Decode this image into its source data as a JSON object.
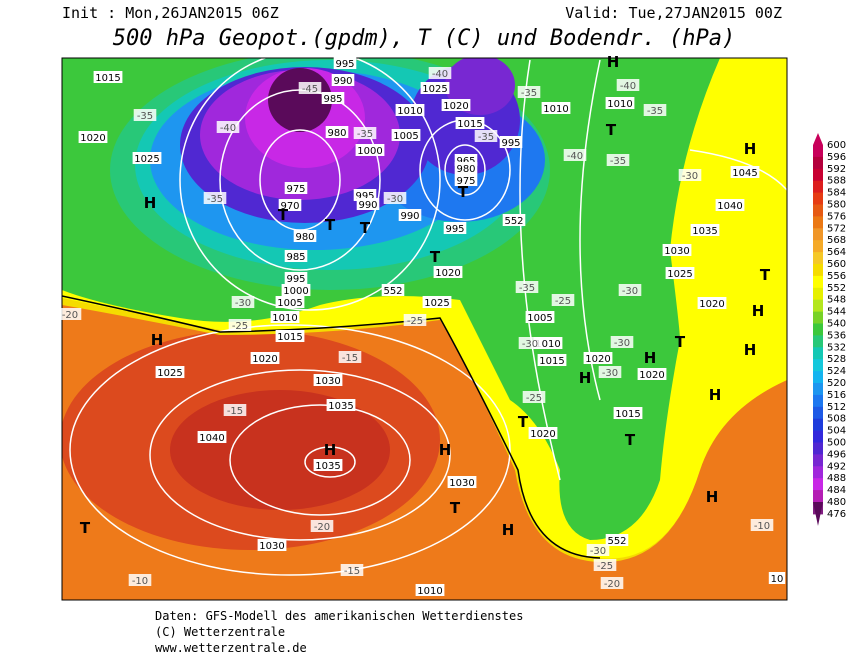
{
  "header": {
    "init": "Init : Mon,26JAN2015 06Z",
    "valid": "Valid: Tue,27JAN2015 00Z",
    "title": "500 hPa Geopot.(gpdm), T (C) und Bodendr. (hPa)"
  },
  "colorbar": {
    "labels": [
      600,
      596,
      592,
      588,
      584,
      580,
      576,
      572,
      568,
      564,
      560,
      556,
      552,
      548,
      544,
      540,
      536,
      532,
      528,
      524,
      520,
      516,
      512,
      508,
      504,
      500,
      496,
      492,
      488,
      484,
      480,
      476
    ],
    "colors": [
      "#c8005a",
      "#b4003c",
      "#c80032",
      "#dc1e1e",
      "#e63c14",
      "#e65a14",
      "#eb7814",
      "#f09628",
      "#f5aa28",
      "#f5c828",
      "#f5dc00",
      "#ffff00",
      "#e6f000",
      "#b4e61e",
      "#78d228",
      "#3cc83c",
      "#28c878",
      "#14c8b4",
      "#14c8dc",
      "#14b4f0",
      "#1e96f0",
      "#1e78f0",
      "#1e5ae6",
      "#1e3cdc",
      "#3228dc",
      "#5028d2",
      "#7828d2",
      "#a028dc",
      "#c828e6",
      "#b41eb4",
      "#821e82",
      "#5a0a5a"
    ]
  },
  "map": {
    "labels": [
      "1015",
      "1020",
      "1025",
      "H",
      "-35",
      "-40",
      "-45",
      "985",
      "990",
      "995",
      "980",
      "975",
      "970",
      "T",
      "T",
      "T",
      "980",
      "985",
      "995",
      "1000",
      "1005",
      "1010",
      "1015",
      "1020",
      "H",
      "1025",
      "-20",
      "-25",
      "-30",
      "-35",
      "1010",
      "1005",
      "1000",
      "995",
      "990",
      "990",
      "995",
      "-30",
      "-35",
      "965",
      "980",
      "975",
      "T",
      "995",
      "-35",
      "1015",
      "1020",
      "1025",
      "-40",
      "-35",
      "1010",
      "H",
      "-40",
      "1010",
      "-35",
      "T",
      "-35",
      "-40",
      "-30",
      "H",
      "1045",
      "1040",
      "1035",
      "1030",
      "1025",
      "T",
      "1020",
      "H",
      "H",
      "T",
      "H",
      "1020",
      "1015",
      "T",
      "H",
      "H",
      "-10",
      "10",
      "-30",
      "-25",
      "1005",
      "1010",
      "1015",
      "-30",
      "1020",
      "-30",
      "-30",
      "H",
      "-25",
      "T",
      "1020",
      "552",
      "-30",
      "-25",
      "-20",
      "H",
      "T",
      "H",
      "1030",
      "-15",
      "1030",
      "1035",
      "-15",
      "1040",
      "H",
      "1035",
      "-20",
      "1030",
      "-15",
      "-10",
      "T",
      "1010",
      "1020",
      "1025",
      "-25",
      "T",
      "-35",
      "552",
      "552"
    ]
  },
  "footer": {
    "line1": "Daten: GFS-Modell des amerikanischen Wetterdienstes",
    "line2": "(C) Wetterzentrale",
    "line3": "www.wetterzentrale.de"
  }
}
